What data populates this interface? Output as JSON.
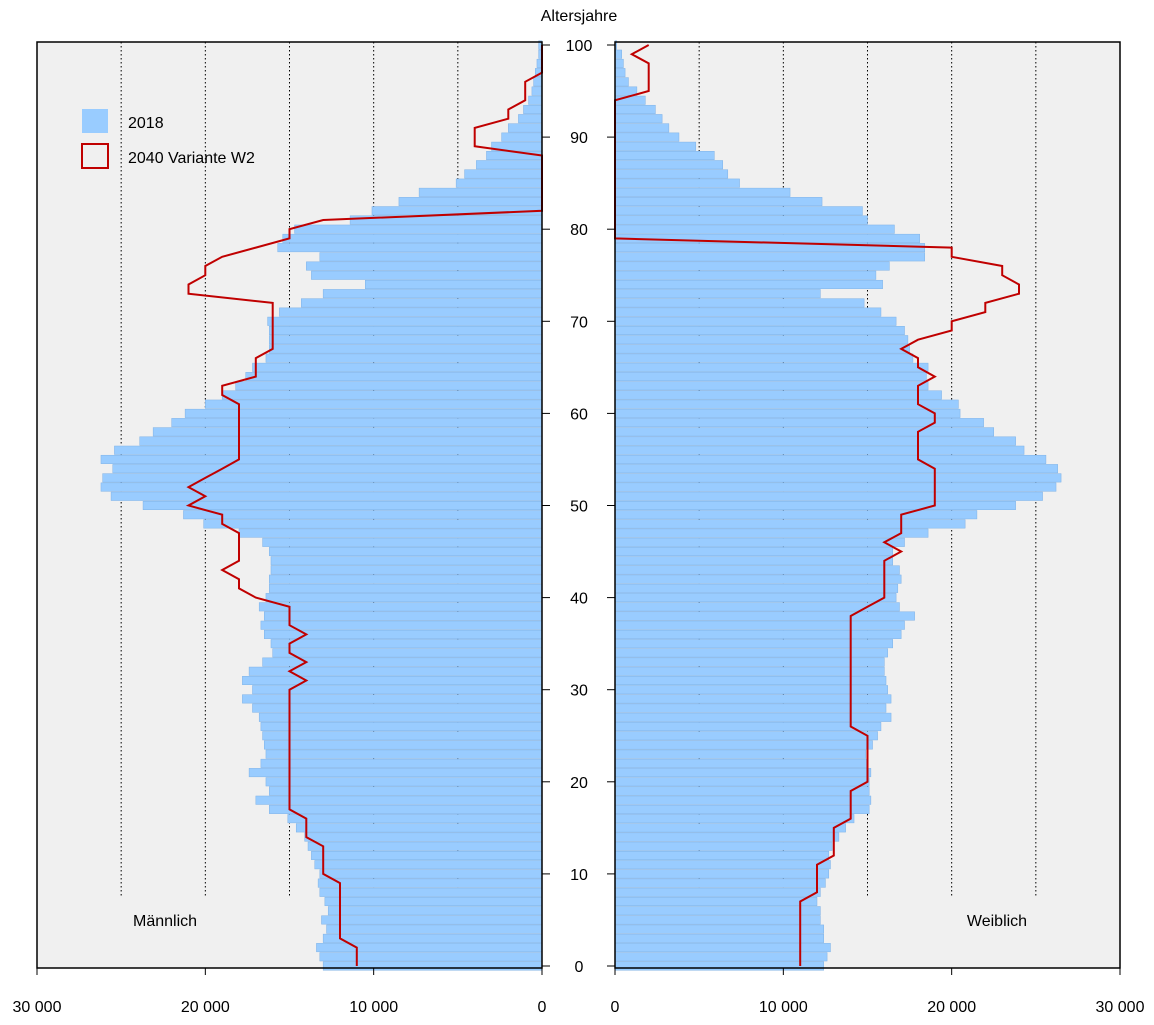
{
  "chart_data": {
    "type": "bar",
    "orientation": "horizontal",
    "y_axis_label": "Altersjahre",
    "age_ticks": [
      0,
      10,
      20,
      30,
      40,
      50,
      60,
      70,
      80,
      90,
      100
    ],
    "x_ticks": [
      0,
      10000,
      20000,
      30000
    ],
    "x_tick_labels": [
      "0",
      "10 000",
      "20 000",
      "30 000"
    ],
    "xlim": [
      0,
      30000
    ],
    "ylim": [
      0,
      100
    ],
    "grid": "vertical dotted every 5 000",
    "legend_position": "top-left",
    "legend": [
      {
        "name": "2018",
        "style": "bar",
        "color": "#99ccff"
      },
      {
        "name": "2040 Variante W2",
        "style": "line",
        "color": "#c00000"
      }
    ],
    "panels": {
      "male": {
        "label": "Männlich"
      },
      "female": {
        "label": "Weiblich"
      }
    },
    "ages": [
      0,
      1,
      2,
      3,
      4,
      5,
      6,
      7,
      8,
      9,
      10,
      11,
      12,
      13,
      14,
      15,
      16,
      17,
      18,
      19,
      20,
      21,
      22,
      23,
      24,
      25,
      26,
      27,
      28,
      29,
      30,
      31,
      32,
      33,
      34,
      35,
      36,
      37,
      38,
      39,
      40,
      41,
      42,
      43,
      44,
      45,
      46,
      47,
      48,
      49,
      50,
      51,
      52,
      53,
      54,
      55,
      56,
      57,
      58,
      59,
      60,
      61,
      62,
      63,
      64,
      65,
      66,
      67,
      68,
      69,
      70,
      71,
      72,
      73,
      74,
      75,
      76,
      77,
      78,
      79,
      80,
      81,
      82,
      83,
      84,
      85,
      86,
      87,
      88,
      89,
      90,
      91,
      92,
      93,
      94,
      95,
      96,
      97,
      98,
      99,
      100
    ],
    "series": [
      {
        "name": "2018",
        "side": "male",
        "values": [
          13000,
          13200,
          13400,
          13000,
          12800,
          13100,
          12700,
          12900,
          13200,
          13300,
          13200,
          13500,
          13700,
          13900,
          14100,
          14600,
          15100,
          16200,
          17000,
          16200,
          16400,
          17400,
          16700,
          16400,
          16500,
          16600,
          16700,
          16800,
          17200,
          17800,
          17200,
          17800,
          17400,
          16600,
          16000,
          16100,
          16500,
          16700,
          16500,
          16800,
          16400,
          16200,
          16200,
          16100,
          16100,
          16200,
          16600,
          18000,
          20100,
          21300,
          23700,
          25600,
          26200,
          26100,
          25500,
          26200,
          25400,
          23900,
          23100,
          22000,
          21200,
          20000,
          19000,
          18200,
          17600,
          17200,
          16400,
          16200,
          16200,
          16200,
          16300,
          15600,
          14300,
          13000,
          10500,
          13700,
          14000,
          13200,
          15700,
          15400,
          14700,
          11400,
          10100,
          8500,
          7300,
          5100,
          4600,
          3900,
          3300,
          3000,
          2400,
          2000,
          1400,
          1100,
          800,
          600,
          500,
          400,
          300,
          200,
          200
        ]
      },
      {
        "name": "2018",
        "side": "female",
        "values": [
          12400,
          12600,
          12800,
          12400,
          12400,
          12200,
          12200,
          12000,
          12200,
          12500,
          12700,
          12800,
          12700,
          12900,
          13300,
          13700,
          14200,
          15100,
          15200,
          15100,
          15100,
          15200,
          15000,
          14900,
          15300,
          15600,
          15800,
          16400,
          16100,
          16400,
          16200,
          16100,
          16000,
          16000,
          16200,
          16500,
          17000,
          17200,
          17800,
          16900,
          16700,
          16800,
          17000,
          16900,
          16500,
          16500,
          17200,
          18600,
          20800,
          21500,
          23800,
          25400,
          26200,
          26500,
          26300,
          25600,
          24300,
          23800,
          22500,
          21900,
          20500,
          20400,
          19400,
          18600,
          18500,
          18600,
          17700,
          17500,
          17400,
          17200,
          16700,
          15800,
          14800,
          12200,
          15900,
          15500,
          16300,
          18400,
          18400,
          18100,
          16600,
          15000,
          14700,
          12300,
          10400,
          7400,
          6700,
          6400,
          5900,
          4800,
          3800,
          3200,
          2800,
          2400,
          1800,
          1300,
          800,
          600,
          500,
          400,
          100
        ]
      },
      {
        "name": "2040 Variante W2",
        "side": "male",
        "values": [
          11000,
          11000,
          11000,
          12000,
          12000,
          12000,
          12000,
          12000,
          12000,
          12000,
          13000,
          13000,
          13000,
          13000,
          14000,
          14000,
          14000,
          15000,
          15000,
          15000,
          15000,
          15000,
          15000,
          15000,
          15000,
          15000,
          15000,
          15000,
          15000,
          15000,
          15000,
          14000,
          15000,
          14000,
          15000,
          15000,
          14000,
          15000,
          15000,
          15000,
          17000,
          18000,
          18000,
          19000,
          18000,
          18000,
          18000,
          18000,
          19000,
          19000,
          21000,
          20000,
          21000,
          20000,
          19000,
          18000,
          18000,
          18000,
          18000,
          18000,
          18000,
          18000,
          19000,
          19000,
          17000,
          17000,
          17000,
          16000,
          16000,
          16000,
          16000,
          16000,
          16000,
          21000,
          21000,
          20000,
          20000,
          19000,
          17000,
          15000,
          15000,
          13000,
          0,
          0,
          0,
          0,
          0,
          0,
          0,
          4000,
          4000,
          4000,
          2000,
          2000,
          1000,
          1000,
          1000,
          0,
          0,
          0,
          0
        ]
      },
      {
        "name": "2040 Variante W2",
        "side": "female",
        "values": [
          11000,
          11000,
          11000,
          11000,
          11000,
          11000,
          11000,
          11000,
          12000,
          12000,
          12000,
          12000,
          13000,
          13000,
          13000,
          13000,
          14000,
          14000,
          14000,
          14000,
          15000,
          15000,
          15000,
          15000,
          15000,
          15000,
          14000,
          14000,
          14000,
          14000,
          14000,
          14000,
          14000,
          14000,
          14000,
          14000,
          14000,
          14000,
          14000,
          15000,
          16000,
          16000,
          16000,
          16000,
          16000,
          17000,
          16000,
          17000,
          17000,
          17000,
          19000,
          19000,
          19000,
          19000,
          19000,
          18000,
          18000,
          18000,
          18000,
          19000,
          19000,
          18000,
          18000,
          18000,
          19000,
          18000,
          18000,
          17000,
          18000,
          20000,
          20000,
          22000,
          22000,
          24000,
          24000,
          23000,
          23000,
          20000,
          20000,
          0,
          0,
          0,
          0,
          0,
          0,
          0,
          0,
          0,
          0,
          0,
          0,
          0,
          0,
          0,
          0,
          2000,
          2000,
          2000,
          2000,
          1000,
          2000
        ]
      }
    ]
  }
}
